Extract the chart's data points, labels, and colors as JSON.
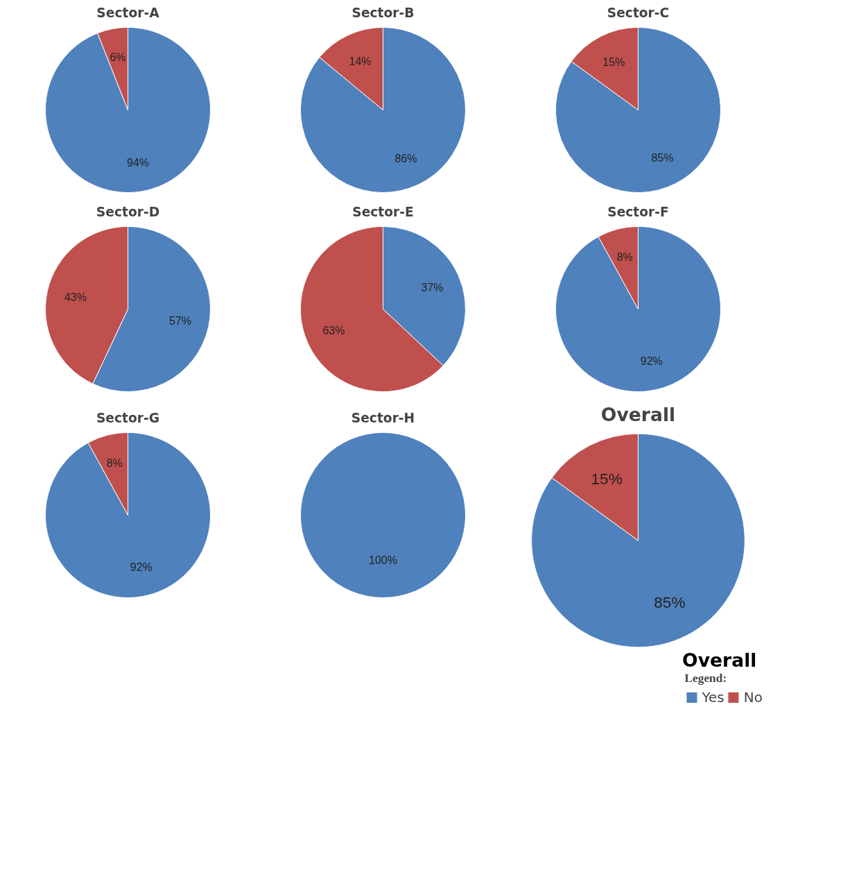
{
  "chart_data": [
    {
      "type": "pie",
      "title": "Sector-A",
      "categories": [
        null,
        null
      ],
      "values": [
        94,
        6
      ],
      "colors": [
        "#4f81bd",
        "#c0504d"
      ],
      "value_labels": [
        "94%",
        "6%"
      ]
    },
    {
      "type": "pie",
      "title": "Sector-B",
      "categories": [
        null,
        null
      ],
      "values": [
        86,
        14
      ],
      "colors": [
        "#4f81bd",
        "#c0504d"
      ],
      "value_labels": [
        "86%",
        "14%"
      ]
    },
    {
      "type": "pie",
      "title": "Sector-C",
      "categories": [
        null,
        null
      ],
      "values": [
        85,
        15
      ],
      "colors": [
        "#4f81bd",
        "#c0504d"
      ],
      "value_labels": [
        "85%",
        "15%"
      ]
    },
    {
      "type": "pie",
      "title": "Sector-D",
      "categories": [
        null,
        null
      ],
      "values": [
        57,
        43
      ],
      "colors": [
        "#4f81bd",
        "#c0504d"
      ],
      "value_labels": [
        "57%",
        "43%"
      ]
    },
    {
      "type": "pie",
      "title": "Sector-E",
      "categories": [
        null,
        null
      ],
      "values": [
        37,
        63
      ],
      "colors": [
        "#4f81bd",
        "#c0504d"
      ],
      "value_labels": [
        "37%",
        "63%"
      ]
    },
    {
      "type": "pie",
      "title": "Sector-F",
      "categories": [
        null,
        null
      ],
      "values": [
        92,
        8
      ],
      "colors": [
        "#4f81bd",
        "#c0504d"
      ],
      "value_labels": [
        "92%",
        "8%"
      ]
    },
    {
      "type": "pie",
      "title": "Sector-G",
      "categories": [
        null,
        null
      ],
      "values": [
        92,
        8
      ],
      "colors": [
        "#4f81bd",
        "#c0504d"
      ],
      "value_labels": [
        "92%",
        "8%"
      ]
    },
    {
      "type": "pie",
      "title": "Sector-H",
      "categories": [
        null
      ],
      "values": [
        100
      ],
      "colors": [
        "#4f81bd"
      ],
      "value_labels": [
        "100%"
      ]
    },
    {
      "type": "pie",
      "title": "Overall",
      "categories": [
        "Yes",
        "No"
      ],
      "values": [
        85,
        15
      ],
      "colors": [
        "#4f81bd",
        "#c0504d"
      ],
      "value_labels": [
        "85%",
        "15%"
      ],
      "legend": "bottom right",
      "legend_title": "Legend:",
      "annotations": [
        "Overall"
      ]
    }
  ]
}
